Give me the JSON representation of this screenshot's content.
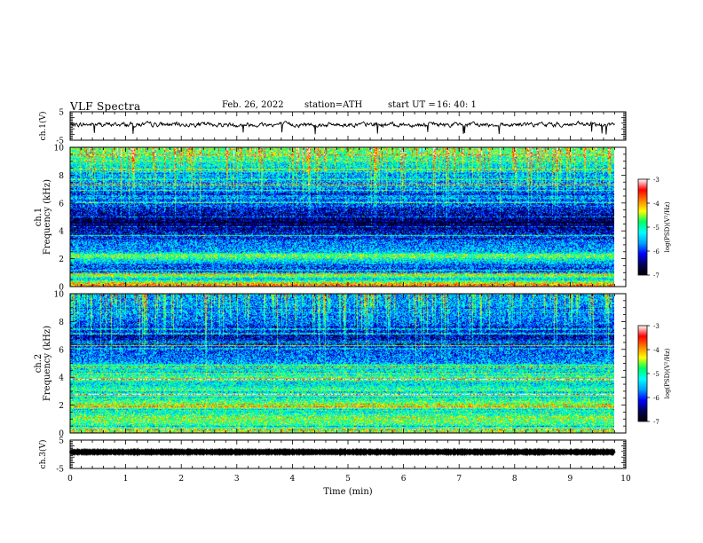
{
  "header": {
    "title": "VLF  Spectra",
    "date": "Feb. 26, 2022",
    "station": "station=ATH",
    "start_label": "start  UT  =",
    "start_value": "16: 40: 1"
  },
  "colors": {
    "colormap": [
      "#000000",
      "#00005a",
      "#0000ff",
      "#00a0ff",
      "#00ffff",
      "#00ff60",
      "#ffff00",
      "#ff7f00",
      "#ff0000",
      "#ffffff"
    ],
    "trace": "#000000"
  },
  "chart_data": [
    {
      "type": "line",
      "name": "ch.1 waveform",
      "ylabel": "ch.1(V)",
      "ylim": [
        -5,
        5
      ],
      "yticks": [
        "5",
        "-5"
      ],
      "xlim": [
        0,
        10
      ],
      "x_extent_min": [
        0,
        9.8
      ],
      "level_v": 0.5,
      "noise_amplitude_v": 1.2
    },
    {
      "type": "heatmap",
      "name": "ch.1 spectrogram",
      "ylabel": "ch.1",
      "ylabel2": "Frequency  (kHz)",
      "ylim": [
        0,
        10
      ],
      "yticks": [
        "0",
        "2",
        "4",
        "6",
        "8",
        "10"
      ],
      "xlim": [
        0,
        10
      ],
      "x_extent_min": [
        0,
        9.8
      ],
      "colorbar": {
        "label": "log(PSD)(V²/Hz)",
        "range": [
          -7,
          -3
        ],
        "ticks": [
          "-3",
          "-4",
          "-5",
          "-6",
          "-7"
        ]
      },
      "profile_logpsd": [
        [
          0.0,
          -3.6
        ],
        [
          0.3,
          -4.4
        ],
        [
          0.5,
          -5.4
        ],
        [
          0.8,
          -4.5
        ],
        [
          1.0,
          -5.7
        ],
        [
          1.3,
          -6.0
        ],
        [
          1.6,
          -5.6
        ],
        [
          2.0,
          -5.1
        ],
        [
          2.2,
          -4.6
        ],
        [
          2.5,
          -5.5
        ],
        [
          3.0,
          -5.7
        ],
        [
          3.5,
          -5.9
        ],
        [
          4.0,
          -6.3
        ],
        [
          4.5,
          -6.7
        ],
        [
          5.0,
          -6.4
        ],
        [
          5.5,
          -6.2
        ],
        [
          6.0,
          -5.9
        ],
        [
          6.5,
          -5.6
        ],
        [
          7.0,
          -5.8
        ],
        [
          8.0,
          -5.5
        ],
        [
          9.0,
          -5.1
        ],
        [
          9.5,
          -4.8
        ],
        [
          10.0,
          -4.6
        ]
      ]
    },
    {
      "type": "heatmap",
      "name": "ch.2 spectrogram",
      "ylabel": "ch.2",
      "ylabel2": "Frequency  (kHz)",
      "ylim": [
        0,
        10
      ],
      "yticks": [
        "0",
        "2",
        "4",
        "6",
        "8",
        "10"
      ],
      "xlim": [
        0,
        10
      ],
      "x_extent_min": [
        0,
        9.8
      ],
      "colorbar": {
        "label": "log(PSD)(V²/Hz)",
        "range": [
          -7,
          -3
        ],
        "ticks": [
          "-3",
          "-4",
          "-5",
          "-6",
          "-7"
        ]
      },
      "profile_logpsd": [
        [
          0.0,
          -4.4
        ],
        [
          0.5,
          -5.0
        ],
        [
          1.0,
          -4.6
        ],
        [
          1.5,
          -5.2
        ],
        [
          2.0,
          -4.4
        ],
        [
          2.5,
          -5.3
        ],
        [
          3.0,
          -4.8
        ],
        [
          3.5,
          -5.3
        ],
        [
          4.0,
          -5.0
        ],
        [
          4.5,
          -5.2
        ],
        [
          5.0,
          -5.6
        ],
        [
          5.5,
          -5.8
        ],
        [
          6.0,
          -5.9
        ],
        [
          6.5,
          -6.2
        ],
        [
          7.0,
          -6.3
        ],
        [
          7.5,
          -6.0
        ],
        [
          8.0,
          -5.8
        ],
        [
          9.0,
          -5.6
        ],
        [
          10.0,
          -5.5
        ]
      ]
    },
    {
      "type": "line",
      "name": "ch.3 waveform",
      "ylabel": "ch.3(V)",
      "xlabel": "Time  (min)",
      "ylim": [
        -5,
        5
      ],
      "yticks": [
        "5",
        "-5"
      ],
      "xlim": [
        0,
        10
      ],
      "xticks": [
        "0",
        "1",
        "2",
        "3",
        "4",
        "5",
        "6",
        "7",
        "8",
        "9",
        "10"
      ],
      "x_extent_min": [
        0,
        9.8
      ],
      "level_v": 0.8,
      "noise_amplitude_v": 0.3
    }
  ]
}
